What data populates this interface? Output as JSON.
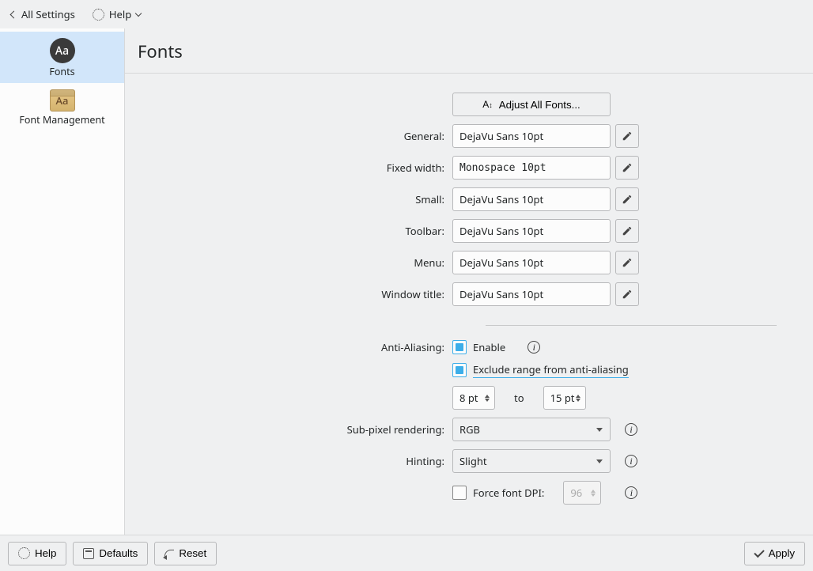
{
  "toolbar": {
    "all_settings": "All Settings",
    "help": "Help"
  },
  "sidebar": {
    "items": [
      {
        "label": "Fonts"
      },
      {
        "label": "Font Management"
      }
    ]
  },
  "page": {
    "title": "Fonts"
  },
  "form": {
    "adjust_all": "Adjust All Fonts...",
    "rows": [
      {
        "label": "General:",
        "value": "DejaVu Sans 10pt",
        "mono": false
      },
      {
        "label": "Fixed width:",
        "value": "Monospace 10pt",
        "mono": true
      },
      {
        "label": "Small:",
        "value": "DejaVu Sans 10pt",
        "mono": false
      },
      {
        "label": "Toolbar:",
        "value": "DejaVu Sans 10pt",
        "mono": false
      },
      {
        "label": "Menu:",
        "value": "DejaVu Sans 10pt",
        "mono": false
      },
      {
        "label": "Window title:",
        "value": "DejaVu Sans 10pt",
        "mono": false
      }
    ],
    "anti_aliasing": {
      "label": "Anti-Aliasing:",
      "enable": "Enable",
      "exclude": "Exclude range from anti-aliasing",
      "from": "8 pt",
      "to_label": "to",
      "to": "15 pt"
    },
    "subpixel": {
      "label": "Sub-pixel rendering:",
      "value": "RGB"
    },
    "hinting": {
      "label": "Hinting:",
      "value": "Slight"
    },
    "dpi": {
      "label": "Force font DPI:",
      "value": "96"
    }
  },
  "footer": {
    "help": "Help",
    "defaults": "Defaults",
    "reset": "Reset",
    "apply": "Apply"
  }
}
